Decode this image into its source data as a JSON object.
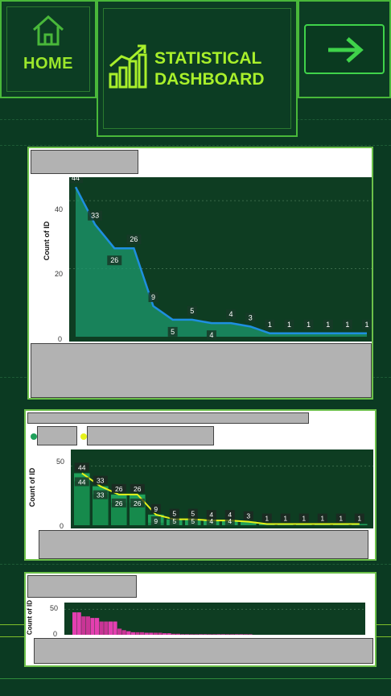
{
  "nav": {
    "home_label": "HOME",
    "title_line1": "STATISTICAL",
    "title_line2": "DASHBOARD",
    "home_icon": "home-icon",
    "title_icon": "bar-chart-trend-icon",
    "next_icon": "arrow-right-icon"
  },
  "colors": {
    "background": "#0b3a22",
    "accent": "#9be72b",
    "area": "#1c9a6e",
    "line": "#1e8fe0",
    "bar": "#1fa05a",
    "trend": "#e6f21a",
    "pink": "#e33fb0"
  },
  "panels": [
    {
      "ylabel": "Count of ID",
      "yticks": [
        "40",
        "20",
        "0"
      ]
    },
    {
      "ylabel": "Count of ID",
      "yticks": [
        "50",
        "0"
      ]
    },
    {
      "ylabel": "Count of ID",
      "yticks": [
        "50",
        "0"
      ]
    }
  ],
  "chart_data": [
    {
      "type": "area",
      "ylabel": "Count of ID",
      "ylim": [
        0,
        45
      ],
      "values": [
        44,
        33,
        26,
        26,
        9,
        5,
        5,
        4,
        4,
        3,
        1,
        1,
        1,
        1,
        1,
        1
      ],
      "data_labels": [
        "44",
        "33",
        "26",
        "26",
        "9",
        "5",
        "5",
        "4",
        "4",
        "3",
        "1",
        "1",
        "1",
        "1",
        "1",
        "1"
      ]
    },
    {
      "type": "bar",
      "ylabel": "Count of ID",
      "ylim": [
        0,
        60
      ],
      "series": [
        {
          "values": [
            44,
            33,
            26,
            26,
            9,
            5,
            5,
            4,
            4,
            3,
            1,
            1,
            1,
            1,
            1,
            1
          ]
        },
        {
          "values": [
            44,
            33,
            26,
            26,
            9,
            5,
            5,
            4,
            4,
            3,
            1,
            1,
            1,
            1,
            1,
            1
          ]
        }
      ],
      "data_labels": [
        "44",
        "33",
        "26",
        "26",
        "9",
        "5",
        "5",
        "4",
        "4",
        "3",
        "1",
        "1",
        "1",
        "1",
        "1",
        "1"
      ]
    },
    {
      "type": "bar",
      "ylabel": "Count of ID",
      "ylim": [
        0,
        60
      ],
      "values": [
        44,
        44,
        36,
        36,
        33,
        33,
        26,
        26,
        26,
        26,
        12,
        9,
        7,
        5,
        5,
        5,
        4,
        4,
        4,
        4,
        3,
        3,
        2,
        2,
        1,
        1,
        1,
        1,
        1,
        1,
        1,
        1,
        1,
        1,
        1,
        1,
        1,
        1,
        1,
        1
      ]
    }
  ]
}
